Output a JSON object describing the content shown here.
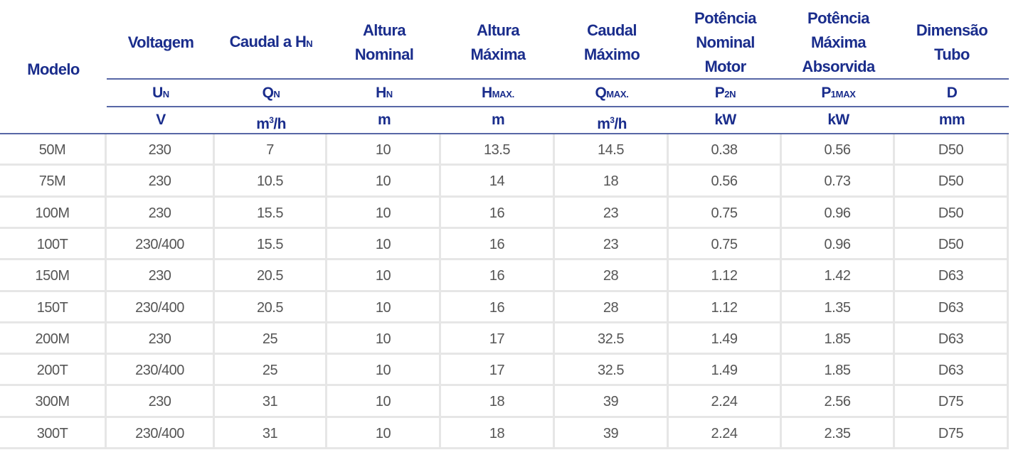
{
  "table": {
    "model_header": "Modelo",
    "columns": [
      {
        "title": [
          "Voltagem"
        ],
        "symbol": "U",
        "symbol_sub": "N",
        "unit": "V"
      },
      {
        "title": [
          "Caudal a H"
        ],
        "title_sub": "N",
        "symbol": "Q",
        "symbol_sub": "N",
        "unit": "m",
        "unit_sup": "3",
        "unit_rest": "/h"
      },
      {
        "title": [
          "Altura",
          "Nominal"
        ],
        "symbol": "H",
        "symbol_sub": "N",
        "unit": "m"
      },
      {
        "title": [
          "Altura",
          "Máxima"
        ],
        "symbol": "H",
        "symbol_sub": "MAX.",
        "unit": "m"
      },
      {
        "title": [
          "Caudal",
          "Máximo"
        ],
        "symbol": "Q",
        "symbol_sub": "MAX.",
        "unit": "m",
        "unit_sup": "3",
        "unit_rest": "/h"
      },
      {
        "title": [
          "Potência",
          "Nominal",
          "Motor"
        ],
        "symbol": "P",
        "symbol_sub": "2N",
        "unit": "kW"
      },
      {
        "title": [
          "Potência",
          "Máxima",
          "Absorvida"
        ],
        "symbol": "P",
        "symbol_sub": "1MAX",
        "unit": "kW"
      },
      {
        "title": [
          "Dimensão",
          "Tubo"
        ],
        "symbol": "D",
        "symbol_sub": "",
        "unit": "mm"
      }
    ],
    "rows": [
      [
        "50M",
        "230",
        "7",
        "10",
        "13.5",
        "14.5",
        "0.38",
        "0.56",
        "D50"
      ],
      [
        "75M",
        "230",
        "10.5",
        "10",
        "14",
        "18",
        "0.56",
        "0.73",
        "D50"
      ],
      [
        "100M",
        "230",
        "15.5",
        "10",
        "16",
        "23",
        "0.75",
        "0.96",
        "D50"
      ],
      [
        "100T",
        "230/400",
        "15.5",
        "10",
        "16",
        "23",
        "0.75",
        "0.96",
        "D50"
      ],
      [
        "150M",
        "230",
        "20.5",
        "10",
        "16",
        "28",
        "1.12",
        "1.42",
        "D63"
      ],
      [
        "150T",
        "230/400",
        "20.5",
        "10",
        "16",
        "28",
        "1.12",
        "1.35",
        "D63"
      ],
      [
        "200M",
        "230",
        "25",
        "10",
        "17",
        "32.5",
        "1.49",
        "1.85",
        "D63"
      ],
      [
        "200T",
        "230/400",
        "25",
        "10",
        "17",
        "32.5",
        "1.49",
        "1.85",
        "D63"
      ],
      [
        "300M",
        "230",
        "31",
        "10",
        "18",
        "39",
        "2.24",
        "2.56",
        "D75"
      ],
      [
        "300T",
        "230/400",
        "31",
        "10",
        "18",
        "39",
        "2.24",
        "2.35",
        "D75"
      ]
    ]
  }
}
